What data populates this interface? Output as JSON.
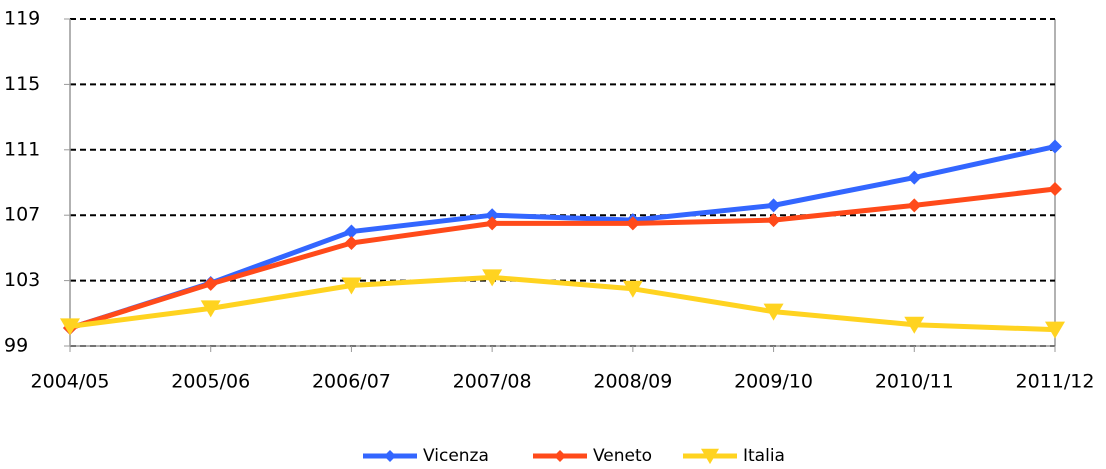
{
  "chart_data": {
    "type": "line",
    "categories": [
      "2004/05",
      "2005/06",
      "2006/07",
      "2007/08",
      "2008/09",
      "2009/10",
      "2010/11",
      "2011/12"
    ],
    "series": [
      {
        "name": "Vicenza",
        "color": "#3366ff",
        "marker": "diamond",
        "values": [
          100.1,
          102.85,
          106.0,
          107.0,
          106.7,
          107.6,
          109.3,
          111.2
        ]
      },
      {
        "name": "Veneto",
        "color": "#ff4a1a",
        "marker": "diamond",
        "values": [
          100.1,
          102.8,
          105.3,
          106.5,
          106.5,
          106.7,
          107.6,
          108.6
        ]
      },
      {
        "name": "Italia",
        "color": "#ffd320",
        "marker": "triangle-down",
        "values": [
          100.2,
          101.3,
          102.7,
          103.2,
          102.5,
          101.1,
          100.3,
          100.0
        ]
      }
    ],
    "ylim": [
      99,
      119
    ],
    "yticks": [
      99,
      103,
      107,
      111,
      115,
      119
    ],
    "grid": true,
    "legend": "bottom"
  }
}
